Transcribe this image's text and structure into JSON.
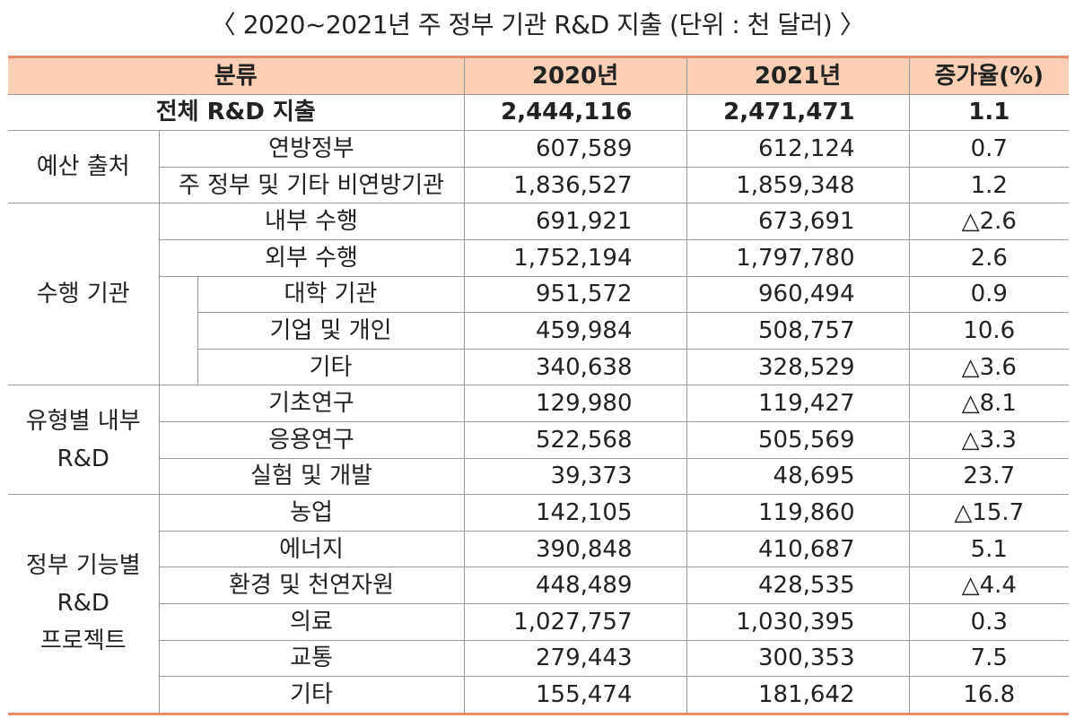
{
  "title": "〈 2020~2021년 주 정부 기관 R&D 지출 (단위 : 천 달러) 〉",
  "headers": {
    "category": "분류",
    "y2020": "2020년",
    "y2021": "2021년",
    "rate": "증가율(%)"
  },
  "total": {
    "label": "전체 R&D 지출",
    "y2020": "2,444,116",
    "y2021": "2,471,471",
    "rate": "1.1"
  },
  "groups": {
    "budget": "예산 출처",
    "performer": "수행 기관",
    "type": [
      "유형별 내부",
      "R&D"
    ],
    "function": [
      "정부 기능별",
      "R&D",
      "프로젝트"
    ]
  },
  "rows": [
    {
      "label": "연방정부",
      "y2020": "607,589",
      "y2021": "612,124",
      "rate": "0.7"
    },
    {
      "label": "주 정부 및 기타 비연방기관",
      "y2020": "1,836,527",
      "y2021": "1,859,348",
      "rate": "1.2"
    },
    {
      "label": "내부 수행",
      "y2020": "691,921",
      "y2021": "673,691",
      "rate": "△2.6"
    },
    {
      "label": "외부 수행",
      "y2020": "1,752,194",
      "y2021": "1,797,780",
      "rate": "2.6"
    },
    {
      "label": "대학 기관",
      "y2020": "951,572",
      "y2021": "960,494",
      "rate": "0.9"
    },
    {
      "label": "기업 및 개인",
      "y2020": "459,984",
      "y2021": "508,757",
      "rate": "10.6"
    },
    {
      "label": "기타",
      "y2020": "340,638",
      "y2021": "328,529",
      "rate": "△3.6"
    },
    {
      "label": "기초연구",
      "y2020": "129,980",
      "y2021": "119,427",
      "rate": "△8.1"
    },
    {
      "label": "응용연구",
      "y2020": "522,568",
      "y2021": "505,569",
      "rate": "△3.3"
    },
    {
      "label": "실험 및 개발",
      "y2020": "39,373",
      "y2021": "48,695",
      "rate": "23.7"
    },
    {
      "label": "농업",
      "y2020": "142,105",
      "y2021": "119,860",
      "rate": "△15.7"
    },
    {
      "label": "에너지",
      "y2020": "390,848",
      "y2021": "410,687",
      "rate": "5.1"
    },
    {
      "label": "환경 및 천연자원",
      "y2020": "448,489",
      "y2021": "428,535",
      "rate": "△4.4"
    },
    {
      "label": "의료",
      "y2020": "1,027,757",
      "y2021": "1,030,395",
      "rate": "0.3"
    },
    {
      "label": "교통",
      "y2020": "279,443",
      "y2021": "300,353",
      "rate": "7.5"
    },
    {
      "label": "기타",
      "y2020": "155,474",
      "y2021": "181,642",
      "rate": "16.8"
    }
  ]
}
